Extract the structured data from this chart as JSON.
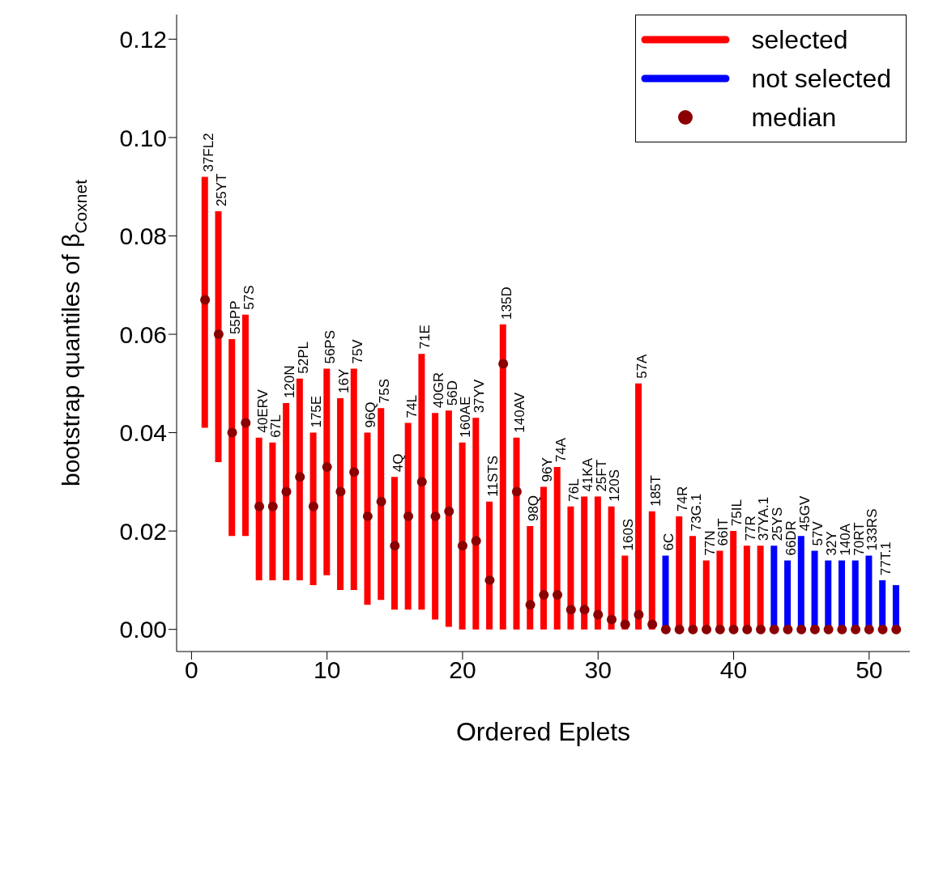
{
  "chart_data": {
    "type": "bar",
    "xlabel": "Ordered Eplets",
    "ylabel": "bootstrap quantiles of β$_{Coxnet}$",
    "x": [
      1,
      2,
      3,
      4,
      5,
      6,
      7,
      8,
      9,
      10,
      11,
      12,
      13,
      14,
      15,
      16,
      17,
      18,
      19,
      20,
      21,
      22,
      23,
      24,
      25,
      26,
      27,
      28,
      29,
      30,
      31,
      32,
      33,
      34,
      35,
      36,
      37,
      38,
      39,
      40,
      41,
      42,
      43,
      44,
      45,
      46,
      47,
      48,
      49,
      50,
      51,
      52
    ],
    "xlim": [
      -1.1,
      53
    ],
    "xticks": [
      0,
      10,
      20,
      30,
      40,
      50
    ],
    "ylim": [
      -0.0045,
      0.125
    ],
    "yticks": [
      {
        "value": 0,
        "label": "0.00"
      },
      {
        "value": 0.02,
        "label": "0.02"
      },
      {
        "value": 0.04,
        "label": "0.04"
      },
      {
        "value": 0.06,
        "label": "0.06"
      },
      {
        "value": 0.08,
        "label": "0.08"
      },
      {
        "value": 0.1,
        "label": "0.10"
      },
      {
        "value": 0.12,
        "label": "0.12"
      }
    ],
    "series": [
      {
        "name": "selected",
        "color": "#ff0000",
        "base": [
          0.041,
          0.034,
          0.019,
          0.019,
          0.01,
          0.01,
          0.01,
          0.01,
          0.009,
          0.011,
          0.008,
          0.008,
          0.005,
          0.006,
          0.004,
          0.004,
          0.004,
          0.002,
          0.0005,
          0,
          0,
          0,
          0,
          0,
          0,
          0,
          0,
          0,
          0,
          0,
          0,
          0,
          0,
          0,
          null,
          0,
          0,
          0,
          0,
          0,
          0,
          0,
          null,
          null,
          null,
          null,
          null,
          null,
          null,
          null,
          null,
          null
        ],
        "values": [
          0.051,
          0.051,
          0.04,
          0.045,
          0.029,
          0.028,
          0.036,
          0.041,
          0.031,
          0.042,
          0.039,
          0.045,
          0.035,
          0.039,
          0.027,
          0.038,
          0.052,
          0.042,
          0.044,
          0.038,
          0.043,
          0.026,
          0.062,
          0.039,
          0.021,
          0.029,
          0.033,
          0.025,
          0.027,
          0.027,
          0.025,
          0.015,
          0.05,
          0.024,
          null,
          0.023,
          0.019,
          0.014,
          0.016,
          0.02,
          0.017,
          0.017,
          null,
          null,
          null,
          null,
          null,
          null,
          null,
          null,
          null,
          null
        ]
      },
      {
        "name": "not selected",
        "color": "#0000ff",
        "base": [
          null,
          null,
          null,
          null,
          null,
          null,
          null,
          null,
          null,
          null,
          null,
          null,
          null,
          null,
          null,
          null,
          null,
          null,
          null,
          null,
          null,
          null,
          null,
          null,
          null,
          null,
          null,
          null,
          null,
          null,
          null,
          null,
          null,
          null,
          0,
          null,
          null,
          null,
          null,
          null,
          null,
          null,
          0,
          0,
          0,
          0,
          0,
          0,
          0,
          0,
          0,
          0
        ],
        "values": [
          null,
          null,
          null,
          null,
          null,
          null,
          null,
          null,
          null,
          null,
          null,
          null,
          null,
          null,
          null,
          null,
          null,
          null,
          null,
          null,
          null,
          null,
          null,
          null,
          null,
          null,
          null,
          null,
          null,
          null,
          null,
          null,
          null,
          null,
          0.015,
          null,
          null,
          null,
          null,
          null,
          null,
          null,
          0.017,
          0.014,
          0.019,
          0.016,
          0.014,
          0.014,
          0.014,
          0.015,
          0.01,
          0.009
        ]
      },
      {
        "name": "median",
        "type": "scatter",
        "color": "#8b0000",
        "marker": "circle",
        "values": [
          0.067,
          0.06,
          0.04,
          0.042,
          0.025,
          0.025,
          0.028,
          0.031,
          0.025,
          0.033,
          0.028,
          0.032,
          0.023,
          0.026,
          0.017,
          0.023,
          0.03,
          0.023,
          0.024,
          0.017,
          0.018,
          0.01,
          0.054,
          0.028,
          0.005,
          0.007,
          0.007,
          0.004,
          0.004,
          0.003,
          0.002,
          0.001,
          0.003,
          0.001,
          0,
          0,
          0,
          0,
          0,
          0,
          0,
          0,
          0,
          0,
          0,
          0,
          0,
          0,
          0,
          0,
          0,
          0
        ]
      }
    ],
    "annotations": [
      {
        "text": "37FL2",
        "x": 1,
        "y": 0.092
      },
      {
        "text": "25YT",
        "x": 2,
        "y": 0.085
      },
      {
        "text": "55PP",
        "x": 3,
        "y": 0.059
      },
      {
        "text": "57S",
        "x": 4,
        "y": 0.064
      },
      {
        "text": "40ERV",
        "x": 5,
        "y": 0.039
      },
      {
        "text": "67L",
        "x": 6,
        "y": 0.038
      },
      {
        "text": "120N",
        "x": 7,
        "y": 0.046
      },
      {
        "text": "52PL",
        "x": 8,
        "y": 0.051
      },
      {
        "text": "175E",
        "x": 9,
        "y": 0.04
      },
      {
        "text": "56PS",
        "x": 10,
        "y": 0.053
      },
      {
        "text": "16Y",
        "x": 11,
        "y": 0.047
      },
      {
        "text": "75V",
        "x": 12,
        "y": 0.053
      },
      {
        "text": "96Q",
        "x": 13,
        "y": 0.04
      },
      {
        "text": "75S",
        "x": 14,
        "y": 0.045
      },
      {
        "text": "4Q",
        "x": 15,
        "y": 0.031
      },
      {
        "text": "74L",
        "x": 16,
        "y": 0.042
      },
      {
        "text": "71E",
        "x": 17,
        "y": 0.056
      },
      {
        "text": "40GR",
        "x": 18,
        "y": 0.044
      },
      {
        "text": "56D",
        "x": 19,
        "y": 0.0445
      },
      {
        "text": "160AE",
        "x": 20,
        "y": 0.038
      },
      {
        "text": "37YV",
        "x": 21,
        "y": 0.043
      },
      {
        "text": "11STS",
        "x": 22,
        "y": 0.026
      },
      {
        "text": "135D",
        "x": 23,
        "y": 0.062
      },
      {
        "text": "140AV",
        "x": 24,
        "y": 0.039
      },
      {
        "text": "98Q",
        "x": 25,
        "y": 0.021
      },
      {
        "text": "96Y",
        "x": 26,
        "y": 0.029
      },
      {
        "text": "74A",
        "x": 27,
        "y": 0.033
      },
      {
        "text": "76L",
        "x": 28,
        "y": 0.025
      },
      {
        "text": "41KA",
        "x": 29,
        "y": 0.027
      },
      {
        "text": "25FT",
        "x": 30,
        "y": 0.027
      },
      {
        "text": "120S",
        "x": 31,
        "y": 0.025
      },
      {
        "text": "160S",
        "x": 32,
        "y": 0.015
      },
      {
        "text": "57A",
        "x": 33,
        "y": 0.05
      },
      {
        "text": "185T",
        "x": 34,
        "y": 0.024
      },
      {
        "text": "6C",
        "x": 35,
        "y": 0.015
      },
      {
        "text": "74R",
        "x": 36,
        "y": 0.023
      },
      {
        "text": "73G.1",
        "x": 37,
        "y": 0.019
      },
      {
        "text": "77N",
        "x": 38,
        "y": 0.014
      },
      {
        "text": "66IT",
        "x": 39,
        "y": 0.016
      },
      {
        "text": "75IL",
        "x": 40,
        "y": 0.02
      },
      {
        "text": "77R",
        "x": 41,
        "y": 0.017
      },
      {
        "text": "37YA.1",
        "x": 42,
        "y": 0.017
      },
      {
        "text": "25YS",
        "x": 43,
        "y": 0.017
      },
      {
        "text": "66DR",
        "x": 44,
        "y": 0.014
      },
      {
        "text": "45GV",
        "x": 45,
        "y": 0.019
      },
      {
        "text": "57V",
        "x": 46,
        "y": 0.016
      },
      {
        "text": "32Y",
        "x": 47,
        "y": 0.014
      },
      {
        "text": "140A",
        "x": 48,
        "y": 0.014
      },
      {
        "text": "70RT",
        "x": 49,
        "y": 0.014
      },
      {
        "text": "133RS",
        "x": 50,
        "y": 0.015
      },
      {
        "text": "77T.1",
        "x": 51,
        "y": 0.01
      }
    ],
    "legend": "top right",
    "grid": false
  }
}
